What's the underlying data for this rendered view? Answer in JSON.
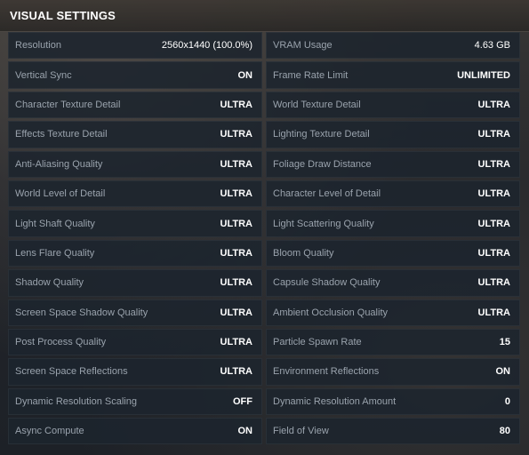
{
  "panel": {
    "title": "VISUAL SETTINGS"
  },
  "settings": {
    "left": [
      {
        "label": "Resolution",
        "value": "2560x1440 (100.0%)"
      },
      {
        "label": "Vertical Sync",
        "value": "ON"
      },
      {
        "label": "Character Texture Detail",
        "value": "ULTRA"
      },
      {
        "label": "Effects Texture Detail",
        "value": "ULTRA"
      },
      {
        "label": "Anti-Aliasing Quality",
        "value": "ULTRA"
      },
      {
        "label": "World Level of Detail",
        "value": "ULTRA"
      },
      {
        "label": "Light Shaft Quality",
        "value": "ULTRA"
      },
      {
        "label": "Lens Flare Quality",
        "value": "ULTRA"
      },
      {
        "label": "Shadow Quality",
        "value": "ULTRA"
      },
      {
        "label": "Screen Space Shadow Quality",
        "value": "ULTRA"
      },
      {
        "label": "Post Process Quality",
        "value": "ULTRA"
      },
      {
        "label": "Screen Space Reflections",
        "value": "ULTRA"
      },
      {
        "label": "Dynamic Resolution Scaling",
        "value": "OFF"
      },
      {
        "label": "Async Compute",
        "value": "ON"
      }
    ],
    "right": [
      {
        "label": "VRAM Usage",
        "value": "4.63 GB"
      },
      {
        "label": "Frame Rate Limit",
        "value": "UNLIMITED"
      },
      {
        "label": "World Texture Detail",
        "value": "ULTRA"
      },
      {
        "label": "Lighting Texture Detail",
        "value": "ULTRA"
      },
      {
        "label": "Foliage Draw Distance",
        "value": "ULTRA"
      },
      {
        "label": "Character Level of Detail",
        "value": "ULTRA"
      },
      {
        "label": "Light Scattering Quality",
        "value": "ULTRA"
      },
      {
        "label": "Bloom Quality",
        "value": "ULTRA"
      },
      {
        "label": "Capsule Shadow Quality",
        "value": "ULTRA"
      },
      {
        "label": "Ambient Occlusion Quality",
        "value": "ULTRA"
      },
      {
        "label": "Particle Spawn Rate",
        "value": "15"
      },
      {
        "label": "Environment Reflections",
        "value": "ON"
      },
      {
        "label": "Dynamic Resolution Amount",
        "value": "0"
      },
      {
        "label": "Field of View",
        "value": "80"
      }
    ]
  }
}
